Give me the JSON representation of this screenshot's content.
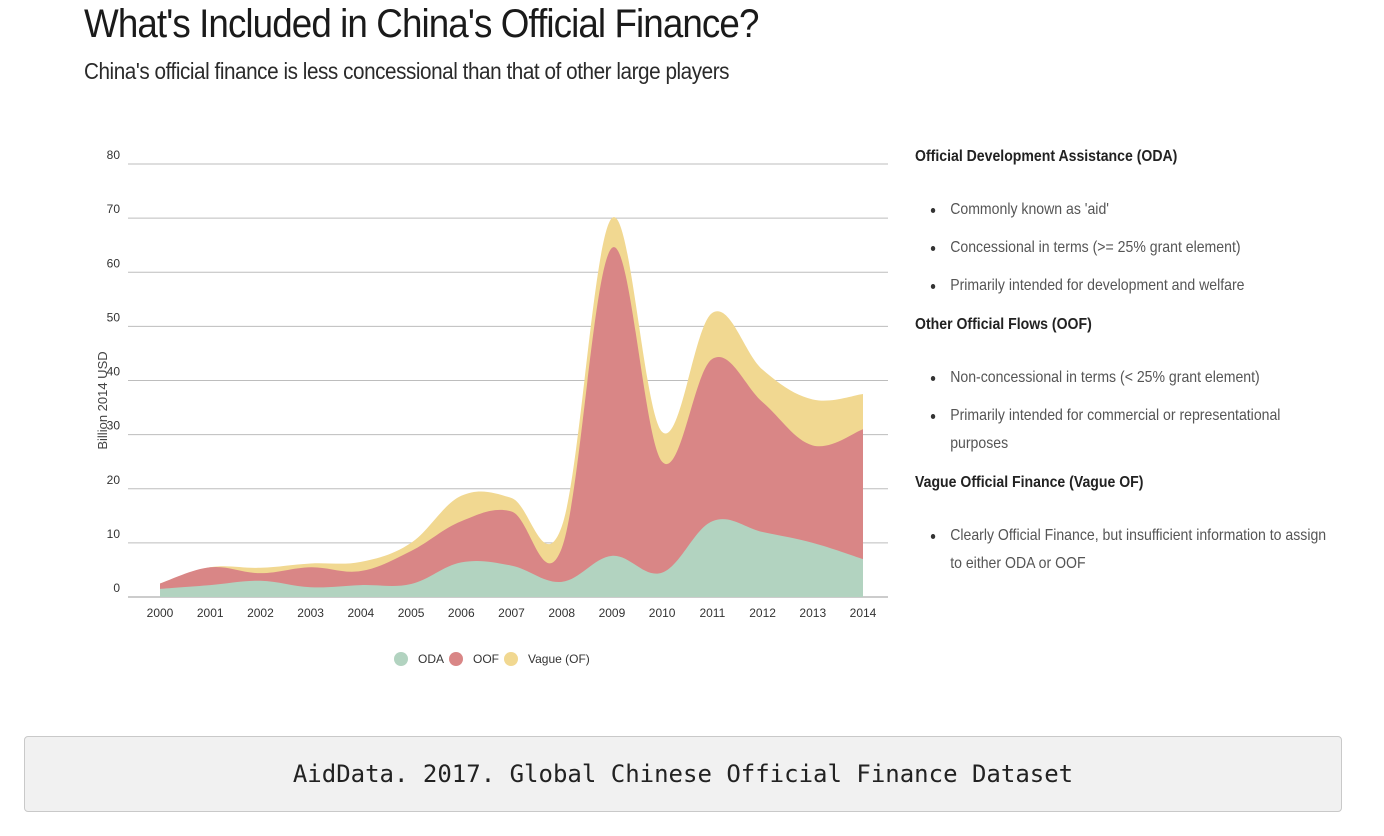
{
  "title": "What's Included in China's Official Finance?",
  "subtitle": "China's official finance is less concessional than that of other large players",
  "chart_data": {
    "type": "area",
    "stacked": true,
    "x": [
      "2000",
      "2001",
      "2002",
      "2003",
      "2004",
      "2005",
      "2006",
      "2007",
      "2008",
      "2009",
      "2010",
      "2011",
      "2012",
      "2013",
      "2014"
    ],
    "series": [
      {
        "name": "ODA",
        "color": "#b2d3c0",
        "values": [
          1.5,
          2.2,
          3.0,
          1.8,
          2.2,
          2.4,
          6.4,
          5.8,
          2.8,
          7.6,
          4.5,
          14.0,
          12.0,
          10.0,
          7.0
        ]
      },
      {
        "name": "OOF",
        "color": "#d98686",
        "values": [
          1.0,
          3.3,
          1.4,
          3.7,
          2.6,
          6.1,
          7.6,
          10.0,
          6.2,
          56.9,
          20.5,
          30.0,
          24.0,
          18.0,
          24.0
        ]
      },
      {
        "name": "Vague (OF)",
        "color": "#f1d891",
        "values": [
          0.0,
          0.0,
          1.0,
          0.7,
          1.7,
          1.5,
          4.7,
          2.5,
          4.0,
          5.5,
          5.5,
          8.5,
          6.0,
          8.5,
          6.5
        ]
      }
    ],
    "ylabel": "Billion 2014 USD",
    "xlabel": "",
    "ylim": [
      0,
      80
    ],
    "yticks": [
      0,
      10,
      20,
      30,
      40,
      50,
      60,
      70,
      80
    ],
    "grid": true,
    "legend": "bottom"
  },
  "info": [
    {
      "heading": "Official Development Assistance (ODA)",
      "bullets": [
        "Commonly known as 'aid'",
        "Concessional in terms (>= 25% grant element)",
        "Primarily intended for development and welfare"
      ]
    },
    {
      "heading": "Other Official Flows (OOF)",
      "bullets": [
        "Non-concessional in terms (< 25% grant element)",
        "Primarily intended for commercial or representational purposes"
      ]
    },
    {
      "heading": "Vague Official Finance (Vague OF)",
      "bullets": [
        "Clearly Official Finance, but insufficient information to assign to either ODA or OOF"
      ]
    }
  ],
  "caption": "AidData. 2017. Global Chinese Official Finance Dataset"
}
